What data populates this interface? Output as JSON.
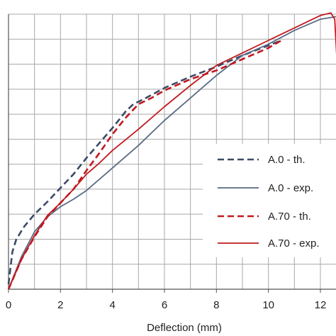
{
  "chart_data": {
    "type": "line",
    "title": "",
    "xlabel": "Deflection (mm)",
    "ylabel": "",
    "xlim": [
      0,
      12.6
    ],
    "ylim": [
      0,
      11
    ],
    "x_ticks": [
      0,
      2,
      4,
      6,
      8,
      10,
      12
    ],
    "x_tick_labels": [
      "0",
      "2",
      "4",
      "6",
      "8",
      "10",
      "12"
    ],
    "x_minor_step": 1,
    "y_grid_step": 1,
    "grid": true,
    "legend_position": "bottom-right",
    "series": [
      {
        "name": "A.0 - th.",
        "color": "#3b4a66",
        "dash": true,
        "points": [
          [
            0,
            0.2
          ],
          [
            0.15,
            1.5
          ],
          [
            0.3,
            2
          ],
          [
            0.6,
            2.5
          ],
          [
            1,
            3
          ],
          [
            1.5,
            3.5
          ],
          [
            2,
            4.05
          ],
          [
            2.5,
            4.6
          ],
          [
            3,
            5.25
          ],
          [
            3.5,
            5.85
          ],
          [
            4,
            6.45
          ],
          [
            4.5,
            7.1
          ],
          [
            4.8,
            7.4
          ],
          [
            5.2,
            7.6
          ],
          [
            6,
            8.05
          ],
          [
            7,
            8.5
          ],
          [
            8,
            8.9
          ],
          [
            9,
            9.35
          ],
          [
            10,
            9.75
          ],
          [
            10.5,
            9.95
          ]
        ]
      },
      {
        "name": "A.0 - exp.",
        "color": "#5a6a84",
        "dash": false,
        "points": [
          [
            0,
            0
          ],
          [
            0.5,
            1.3
          ],
          [
            1,
            2.3
          ],
          [
            1.5,
            2.9
          ],
          [
            2,
            3.3
          ],
          [
            2.5,
            3.6
          ],
          [
            3,
            3.95
          ],
          [
            4,
            4.85
          ],
          [
            5,
            5.75
          ],
          [
            6,
            6.75
          ],
          [
            7,
            7.65
          ],
          [
            8,
            8.55
          ],
          [
            9,
            9.35
          ],
          [
            10,
            9.8
          ],
          [
            11,
            10.35
          ],
          [
            12,
            10.8
          ],
          [
            12.6,
            10.9
          ]
        ]
      },
      {
        "name": "A.70 - th.",
        "color": "#c0191f",
        "dash": true,
        "points": [
          [
            0,
            0
          ],
          [
            0.5,
            1.2
          ],
          [
            1,
            2.1
          ],
          [
            1.5,
            2.9
          ],
          [
            2,
            3.45
          ],
          [
            2.5,
            4
          ],
          [
            3,
            4.75
          ],
          [
            3.5,
            5.45
          ],
          [
            4,
            6.2
          ],
          [
            4.5,
            6.85
          ],
          [
            5,
            7.4
          ],
          [
            5.5,
            7.65
          ],
          [
            6,
            7.95
          ],
          [
            7,
            8.4
          ],
          [
            8,
            8.75
          ],
          [
            9,
            9.2
          ],
          [
            10,
            9.65
          ],
          [
            10.5,
            9.95
          ]
        ]
      },
      {
        "name": "A.70 - exp.",
        "color": "#c0191f",
        "dash": false,
        "points": [
          [
            0,
            0
          ],
          [
            0.5,
            1.2
          ],
          [
            1,
            2.15
          ],
          [
            1.5,
            2.95
          ],
          [
            2,
            3.45
          ],
          [
            2.5,
            4
          ],
          [
            3,
            4.6
          ],
          [
            3.5,
            5.05
          ],
          [
            4,
            5.55
          ],
          [
            5,
            6.4
          ],
          [
            6,
            7.3
          ],
          [
            7,
            8.15
          ],
          [
            8,
            8.95
          ],
          [
            9,
            9.45
          ],
          [
            10,
            9.95
          ],
          [
            11,
            10.45
          ],
          [
            12,
            10.95
          ],
          [
            12.4,
            11.05
          ],
          [
            12.55,
            10.8
          ],
          [
            12.8,
            6
          ]
        ]
      }
    ]
  }
}
